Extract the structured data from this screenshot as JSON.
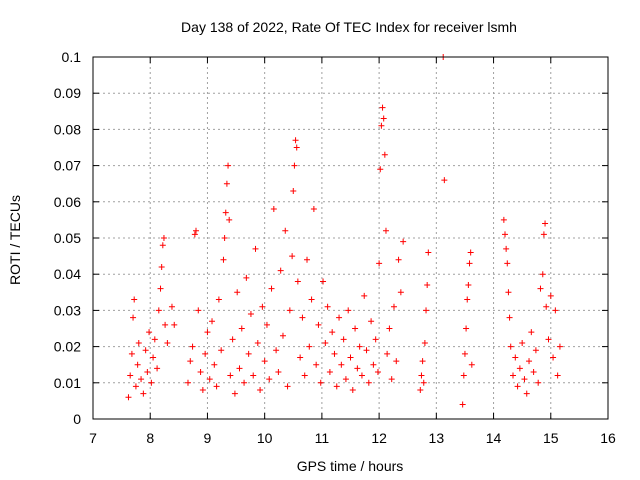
{
  "chart_data": {
    "type": "scatter",
    "title": "Day 138 of 2022, Rate Of TEC Index for receiver lsmh",
    "xlabel": "GPS time / hours",
    "ylabel": "ROTI / TECUs",
    "xlim": [
      7,
      16
    ],
    "ylim": [
      0,
      0.1
    ],
    "xticks": [
      "7",
      "8",
      "9",
      "10",
      "11",
      "12",
      "13",
      "14",
      "15",
      "16"
    ],
    "yticks": [
      "0",
      "0.01",
      "0.02",
      "0.03",
      "0.04",
      "0.05",
      "0.06",
      "0.07",
      "0.08",
      "0.09",
      "0.1"
    ],
    "grid": true,
    "marker": "+",
    "color": "#ff0000",
    "series": [
      {
        "points": [
          [
            7.62,
            0.006
          ],
          [
            7.65,
            0.012
          ],
          [
            7.68,
            0.018
          ],
          [
            7.7,
            0.028
          ],
          [
            7.72,
            0.033
          ],
          [
            7.75,
            0.009
          ],
          [
            7.78,
            0.015
          ],
          [
            7.8,
            0.021
          ],
          [
            7.84,
            0.011
          ],
          [
            7.88,
            0.007
          ],
          [
            7.92,
            0.019
          ],
          [
            7.95,
            0.013
          ],
          [
            7.98,
            0.024
          ],
          [
            8.02,
            0.01
          ],
          [
            8.05,
            0.017
          ],
          [
            8.08,
            0.022
          ],
          [
            8.12,
            0.014
          ],
          [
            8.15,
            0.03
          ],
          [
            8.18,
            0.036
          ],
          [
            8.2,
            0.042
          ],
          [
            8.22,
            0.048
          ],
          [
            8.24,
            0.05
          ],
          [
            8.26,
            0.026
          ],
          [
            8.3,
            0.021
          ],
          [
            8.38,
            0.031
          ],
          [
            8.42,
            0.026
          ],
          [
            8.66,
            0.01
          ],
          [
            8.7,
            0.016
          ],
          [
            8.74,
            0.02
          ],
          [
            8.78,
            0.051
          ],
          [
            8.8,
            0.052
          ],
          [
            8.84,
            0.03
          ],
          [
            8.88,
            0.013
          ],
          [
            8.92,
            0.008
          ],
          [
            8.96,
            0.018
          ],
          [
            9.0,
            0.024
          ],
          [
            9.04,
            0.011
          ],
          [
            9.08,
            0.027
          ],
          [
            9.12,
            0.015
          ],
          [
            9.16,
            0.009
          ],
          [
            9.2,
            0.033
          ],
          [
            9.24,
            0.019
          ],
          [
            9.28,
            0.044
          ],
          [
            9.3,
            0.05
          ],
          [
            9.32,
            0.057
          ],
          [
            9.34,
            0.065
          ],
          [
            9.36,
            0.07
          ],
          [
            9.38,
            0.055
          ],
          [
            9.4,
            0.012
          ],
          [
            9.44,
            0.022
          ],
          [
            9.48,
            0.007
          ],
          [
            9.52,
            0.035
          ],
          [
            9.56,
            0.014
          ],
          [
            9.6,
            0.025
          ],
          [
            9.64,
            0.01
          ],
          [
            9.68,
            0.039
          ],
          [
            9.72,
            0.018
          ],
          [
            9.76,
            0.029
          ],
          [
            9.8,
            0.012
          ],
          [
            9.84,
            0.047
          ],
          [
            9.88,
            0.021
          ],
          [
            9.92,
            0.008
          ],
          [
            9.96,
            0.031
          ],
          [
            10.0,
            0.016
          ],
          [
            10.04,
            0.026
          ],
          [
            10.08,
            0.011
          ],
          [
            10.12,
            0.036
          ],
          [
            10.16,
            0.058
          ],
          [
            10.2,
            0.019
          ],
          [
            10.24,
            0.013
          ],
          [
            10.28,
            0.041
          ],
          [
            10.32,
            0.023
          ],
          [
            10.36,
            0.052
          ],
          [
            10.4,
            0.009
          ],
          [
            10.44,
            0.03
          ],
          [
            10.48,
            0.045
          ],
          [
            10.5,
            0.063
          ],
          [
            10.52,
            0.07
          ],
          [
            10.54,
            0.077
          ],
          [
            10.56,
            0.075
          ],
          [
            10.58,
            0.038
          ],
          [
            10.62,
            0.017
          ],
          [
            10.66,
            0.028
          ],
          [
            10.7,
            0.012
          ],
          [
            10.74,
            0.044
          ],
          [
            10.78,
            0.02
          ],
          [
            10.82,
            0.033
          ],
          [
            10.86,
            0.058
          ],
          [
            10.9,
            0.015
          ],
          [
            10.94,
            0.026
          ],
          [
            10.98,
            0.01
          ],
          [
            11.02,
            0.038
          ],
          [
            11.06,
            0.021
          ],
          [
            11.1,
            0.031
          ],
          [
            11.14,
            0.013
          ],
          [
            11.18,
            0.024
          ],
          [
            11.22,
            0.018
          ],
          [
            11.26,
            0.009
          ],
          [
            11.3,
            0.028
          ],
          [
            11.34,
            0.015
          ],
          [
            11.38,
            0.022
          ],
          [
            11.42,
            0.011
          ],
          [
            11.46,
            0.03
          ],
          [
            11.5,
            0.017
          ],
          [
            11.54,
            0.008
          ],
          [
            11.58,
            0.025
          ],
          [
            11.62,
            0.014
          ],
          [
            11.66,
            0.02
          ],
          [
            11.7,
            0.012
          ],
          [
            11.74,
            0.034
          ],
          [
            11.78,
            0.019
          ],
          [
            11.82,
            0.01
          ],
          [
            11.86,
            0.027
          ],
          [
            11.9,
            0.015
          ],
          [
            11.94,
            0.022
          ],
          [
            11.98,
            0.013
          ],
          [
            12.0,
            0.043
          ],
          [
            12.02,
            0.069
          ],
          [
            12.04,
            0.081
          ],
          [
            12.06,
            0.086
          ],
          [
            12.08,
            0.083
          ],
          [
            12.1,
            0.073
          ],
          [
            12.12,
            0.052
          ],
          [
            12.14,
            0.018
          ],
          [
            12.18,
            0.025
          ],
          [
            12.22,
            0.011
          ],
          [
            12.26,
            0.031
          ],
          [
            12.3,
            0.016
          ],
          [
            12.34,
            0.044
          ],
          [
            12.38,
            0.035
          ],
          [
            12.42,
            0.049
          ],
          [
            12.72,
            0.008
          ],
          [
            12.74,
            0.012
          ],
          [
            12.76,
            0.016
          ],
          [
            12.78,
            0.01
          ],
          [
            12.8,
            0.021
          ],
          [
            12.82,
            0.03
          ],
          [
            12.84,
            0.037
          ],
          [
            12.86,
            0.046
          ],
          [
            13.12,
            0.1
          ],
          [
            13.14,
            0.066
          ],
          [
            13.46,
            0.004
          ],
          [
            13.48,
            0.012
          ],
          [
            13.5,
            0.018
          ],
          [
            13.52,
            0.025
          ],
          [
            13.54,
            0.033
          ],
          [
            13.56,
            0.037
          ],
          [
            13.58,
            0.043
          ],
          [
            13.6,
            0.046
          ],
          [
            13.62,
            0.015
          ],
          [
            14.18,
            0.055
          ],
          [
            14.2,
            0.051
          ],
          [
            14.22,
            0.047
          ],
          [
            14.24,
            0.043
          ],
          [
            14.26,
            0.035
          ],
          [
            14.28,
            0.028
          ],
          [
            14.3,
            0.02
          ],
          [
            14.34,
            0.012
          ],
          [
            14.38,
            0.017
          ],
          [
            14.42,
            0.009
          ],
          [
            14.46,
            0.014
          ],
          [
            14.5,
            0.021
          ],
          [
            14.54,
            0.011
          ],
          [
            14.58,
            0.007
          ],
          [
            14.62,
            0.016
          ],
          [
            14.66,
            0.024
          ],
          [
            14.7,
            0.013
          ],
          [
            14.74,
            0.019
          ],
          [
            14.78,
            0.01
          ],
          [
            14.82,
            0.036
          ],
          [
            14.86,
            0.04
          ],
          [
            14.88,
            0.051
          ],
          [
            14.9,
            0.054
          ],
          [
            14.92,
            0.031
          ],
          [
            14.96,
            0.022
          ],
          [
            15.0,
            0.034
          ],
          [
            15.04,
            0.017
          ],
          [
            15.08,
            0.03
          ],
          [
            15.12,
            0.012
          ],
          [
            15.16,
            0.02
          ]
        ]
      }
    ]
  }
}
